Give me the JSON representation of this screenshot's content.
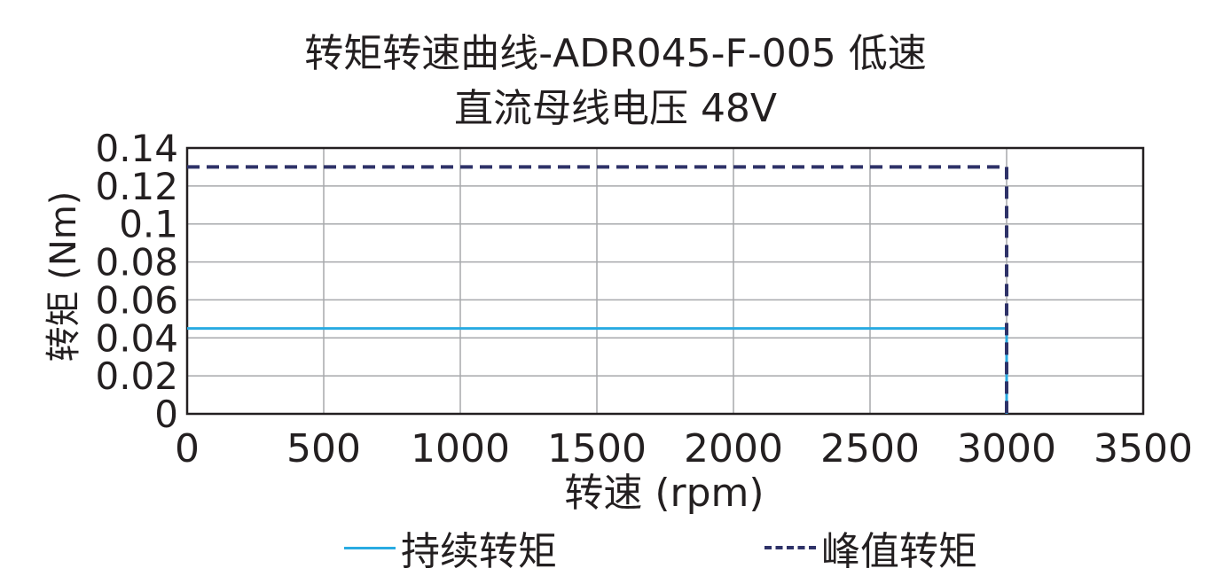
{
  "chart_data": {
    "type": "line",
    "title": "转矩转速曲线-ADR045-F-005 低速",
    "subtitle": "直流母线电压 48V",
    "xlabel": "转速 (rpm)",
    "ylabel": "转矩 (Nm)",
    "xlim": [
      0,
      3500
    ],
    "ylim": [
      0,
      0.14
    ],
    "xticks": [
      "0",
      "500",
      "1000",
      "1500",
      "2000",
      "2500",
      "3000",
      "3500"
    ],
    "yticks": [
      "0",
      "0.02",
      "0.04",
      "0.06",
      "0.08",
      "0.1",
      "0.12",
      "0.14"
    ],
    "grid": true,
    "legend_position": "bottom",
    "series": [
      {
        "name": "持续转矩",
        "style": "solid",
        "color": "#29abe2",
        "x": [
          0,
          3000,
          3000
        ],
        "y": [
          0.045,
          0.045,
          0
        ]
      },
      {
        "name": "峰值转矩",
        "style": "dashed",
        "color": "#2e3268",
        "x": [
          0,
          3000,
          3000
        ],
        "y": [
          0.13,
          0.13,
          0
        ]
      }
    ]
  }
}
